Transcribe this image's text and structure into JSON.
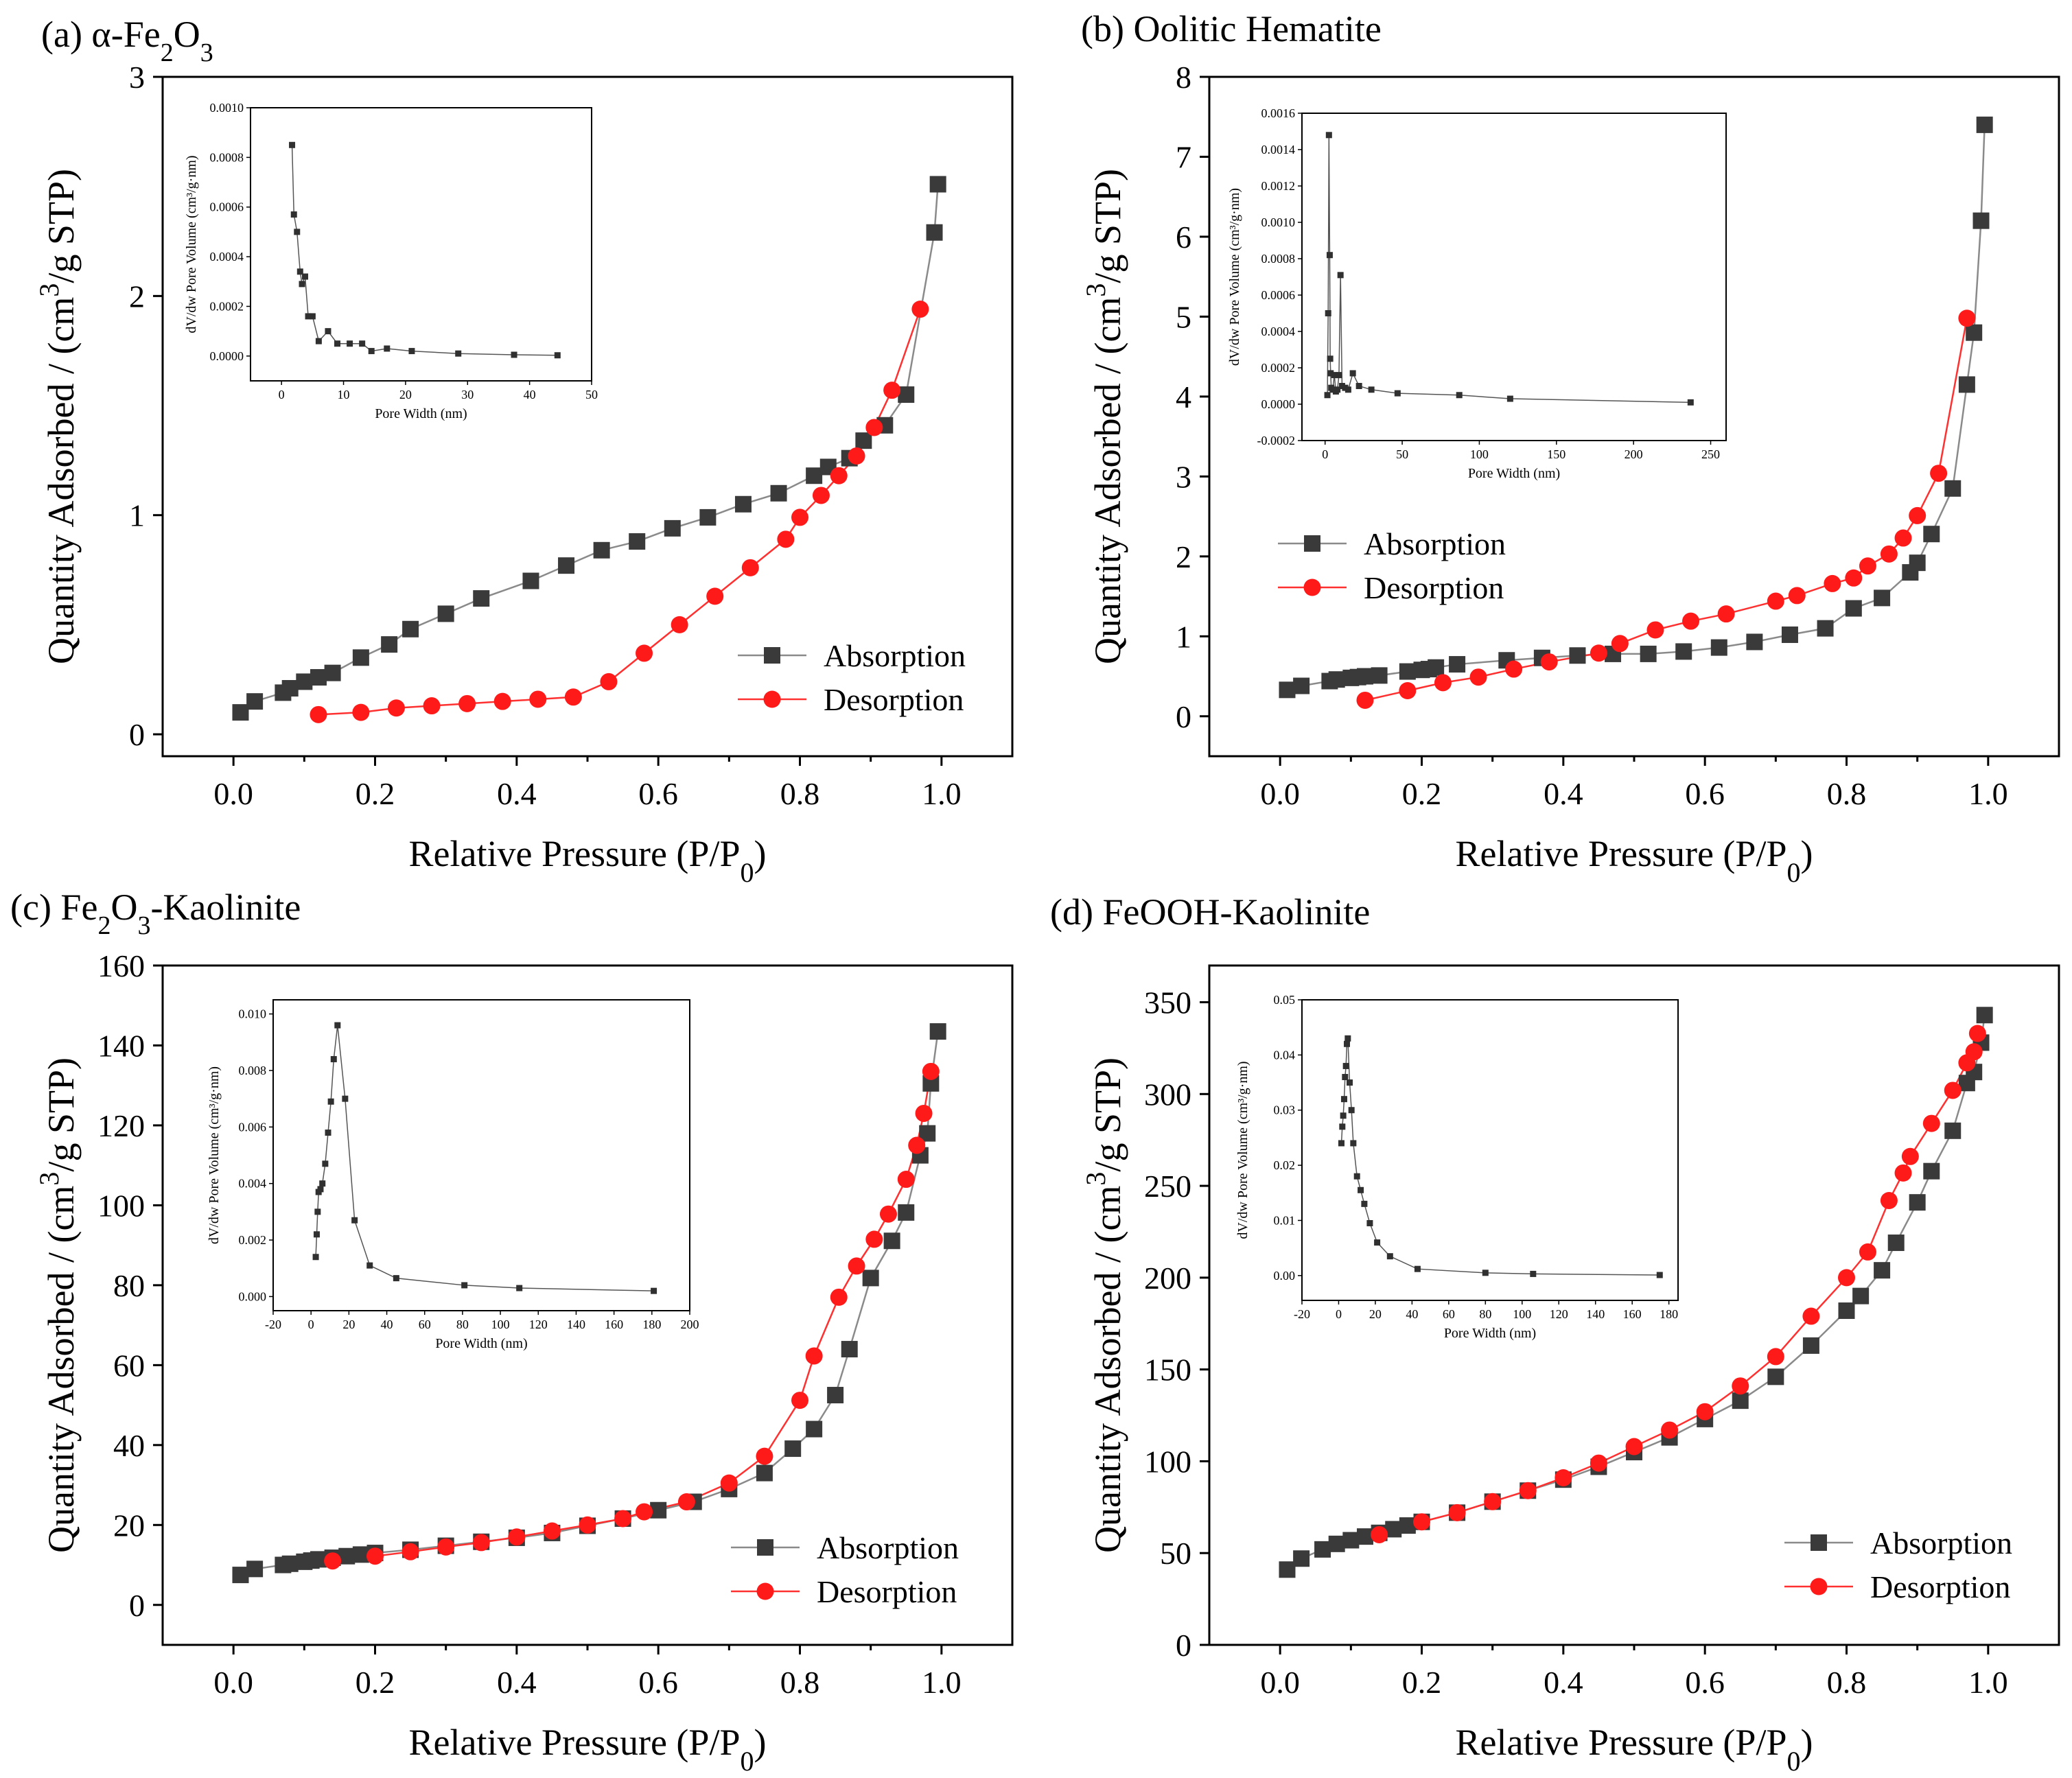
{
  "figure": {
    "legend": {
      "absorption": "Absorption",
      "desorption": "Desorption"
    },
    "colors": {
      "absorption_line": "#8a8a8a",
      "absorption_marker": "#3a3a3a",
      "desorption_line": "#ff3030",
      "desorption_marker": "#ff1a1a",
      "inset_marker": "#303030"
    }
  },
  "chart_data": [
    {
      "id": "a",
      "type": "line",
      "title_prefix": "(a) α-Fe",
      "title_sub1": "2",
      "title_mid": "O",
      "title_sub2": "3",
      "title_suffix": "",
      "xlabel": "Relative Pressure (P/P",
      "xlabel_sub": "0",
      "xlabel_end": ")",
      "ylabel": "Quantity Adsorbed / (cm",
      "ylabel_sup": "3",
      "ylabel_end": "/g STP)",
      "xlim": [
        -0.1,
        1.1
      ],
      "ylim": [
        -0.1,
        3
      ],
      "xticks": [
        0.0,
        0.2,
        0.4,
        0.6,
        0.8,
        1.0
      ],
      "xtick_labels": [
        "0.0",
        "0.2",
        "0.4",
        "0.6",
        "0.8",
        "1.0"
      ],
      "yticks": [
        0,
        1,
        2,
        3
      ],
      "ytick_labels": [
        "0",
        "1",
        "2",
        "3"
      ],
      "legend_position": "bottom-right",
      "series": [
        {
          "name": "Absorption",
          "x": [
            0.01,
            0.03,
            0.07,
            0.08,
            0.1,
            0.12,
            0.14,
            0.18,
            0.22,
            0.25,
            0.3,
            0.35,
            0.42,
            0.47,
            0.52,
            0.57,
            0.62,
            0.67,
            0.72,
            0.77,
            0.82,
            0.84,
            0.87,
            0.89,
            0.92,
            0.95,
            0.99,
            0.995
          ],
          "y": [
            0.1,
            0.15,
            0.19,
            0.21,
            0.24,
            0.26,
            0.28,
            0.35,
            0.41,
            0.48,
            0.55,
            0.62,
            0.7,
            0.77,
            0.84,
            0.88,
            0.94,
            0.99,
            1.05,
            1.1,
            1.18,
            1.22,
            1.26,
            1.34,
            1.41,
            1.55,
            2.29,
            2.51
          ]
        },
        {
          "name": "Desorption",
          "x": [
            0.12,
            0.18,
            0.23,
            0.28,
            0.33,
            0.38,
            0.43,
            0.48,
            0.53,
            0.58,
            0.63,
            0.68,
            0.73,
            0.78,
            0.8,
            0.83,
            0.855,
            0.88,
            0.905,
            0.93,
            0.97
          ],
          "y": [
            0.09,
            0.1,
            0.12,
            0.13,
            0.14,
            0.15,
            0.16,
            0.17,
            0.24,
            0.37,
            0.5,
            0.63,
            0.76,
            0.89,
            0.99,
            1.09,
            1.18,
            1.27,
            1.4,
            1.57,
            1.94
          ]
        }
      ],
      "inset": {
        "xlabel": "Pore Width (nm)",
        "ylabel": "dV/dw Pore Volume (cm³/g·nm)",
        "xlim": [
          -5,
          50
        ],
        "ylim": [
          -0.0001,
          0.001
        ],
        "xticks": [
          0,
          10,
          20,
          30,
          40,
          50
        ],
        "xtick_labels": [
          "0",
          "10",
          "20",
          "30",
          "40",
          "50"
        ],
        "yticks": [
          0.0,
          0.0002,
          0.0004,
          0.0006,
          0.0008,
          0.001
        ],
        "ytick_labels": [
          "0.0000",
          "0.0002",
          "0.0004",
          "0.0006",
          "0.0008",
          "0.0010"
        ],
        "x": [
          1.7,
          2.0,
          2.5,
          3.0,
          3.3,
          3.8,
          4.3,
          5.0,
          6.0,
          7.5,
          9.0,
          11.0,
          13.0,
          14.5,
          17.0,
          21.0,
          28.5,
          37.5,
          44.5
        ],
        "y": [
          0.00085,
          0.00057,
          0.0005,
          0.00034,
          0.00029,
          0.00032,
          0.00016,
          0.00016,
          6e-05,
          0.0001,
          5e-05,
          5e-05,
          5e-05,
          2e-05,
          3e-05,
          2e-05,
          1e-05,
          5e-06,
          3e-06
        ]
      }
    },
    {
      "id": "b",
      "type": "line",
      "title_prefix": "(b) Oolitic Hematite",
      "title_sub1": "",
      "title_mid": "",
      "title_sub2": "",
      "title_suffix": "",
      "xlabel": "Relative Pressure (P/P",
      "xlabel_sub": "0",
      "xlabel_end": ")",
      "ylabel": "Quantity Adsorbed / (cm",
      "ylabel_sup": "3",
      "ylabel_end": "/g STP)",
      "xlim": [
        -0.1,
        1.1
      ],
      "ylim": [
        -0.5,
        8
      ],
      "xticks": [
        0.0,
        0.2,
        0.4,
        0.6,
        0.8,
        1.0
      ],
      "xtick_labels": [
        "0.0",
        "0.2",
        "0.4",
        "0.6",
        "0.8",
        "1.0"
      ],
      "yticks": [
        0,
        1,
        2,
        3,
        4,
        5,
        6,
        7,
        8
      ],
      "ytick_labels": [
        "0",
        "1",
        "2",
        "3",
        "4",
        "5",
        "6",
        "7",
        "8"
      ],
      "legend_position": "middle-left",
      "series": [
        {
          "name": "Absorption",
          "x": [
            0.01,
            0.03,
            0.07,
            0.08,
            0.1,
            0.11,
            0.12,
            0.14,
            0.18,
            0.2,
            0.21,
            0.22,
            0.25,
            0.32,
            0.37,
            0.42,
            0.47,
            0.52,
            0.57,
            0.62,
            0.67,
            0.72,
            0.77,
            0.81,
            0.85,
            0.89,
            0.9,
            0.92,
            0.95,
            0.97,
            0.98,
            0.99,
            0.995
          ],
          "y": [
            0.33,
            0.38,
            0.44,
            0.46,
            0.48,
            0.49,
            0.5,
            0.51,
            0.56,
            0.58,
            0.59,
            0.61,
            0.65,
            0.7,
            0.73,
            0.76,
            0.78,
            0.78,
            0.81,
            0.86,
            0.93,
            1.02,
            1.1,
            1.35,
            1.48,
            1.8,
            1.92,
            2.28,
            2.85,
            4.15,
            4.8,
            6.2,
            7.4
          ]
        },
        {
          "name": "Desorption",
          "x": [
            0.12,
            0.18,
            0.23,
            0.28,
            0.33,
            0.38,
            0.45,
            0.48,
            0.53,
            0.58,
            0.63,
            0.7,
            0.73,
            0.78,
            0.81,
            0.83,
            0.86,
            0.88,
            0.9,
            0.93,
            0.97
          ],
          "y": [
            0.2,
            0.32,
            0.42,
            0.49,
            0.59,
            0.68,
            0.79,
            0.91,
            1.08,
            1.19,
            1.28,
            1.44,
            1.51,
            1.66,
            1.73,
            1.88,
            2.03,
            2.23,
            2.51,
            3.04,
            4.98
          ]
        }
      ],
      "inset": {
        "xlabel": "Pore Width (nm)",
        "ylabel": "dV/dw Pore Volume (cm³/g·nm)",
        "xlim": [
          -15,
          260
        ],
        "ylim": [
          -0.0002,
          0.0016
        ],
        "xticks": [
          0,
          50,
          100,
          150,
          200,
          250
        ],
        "xtick_labels": [
          "0",
          "50",
          "100",
          "150",
          "200",
          "250"
        ],
        "yticks": [
          -0.0002,
          0.0,
          0.0002,
          0.0004,
          0.0006,
          0.0008,
          0.001,
          0.0012,
          0.0014,
          0.0016
        ],
        "ytick_labels": [
          "-0.0002",
          "0.0000",
          "0.0002",
          "0.0004",
          "0.0006",
          "0.0008",
          "0.0010",
          "0.0012",
          "0.0014",
          "0.0016"
        ],
        "x": [
          1.5,
          2.0,
          2.5,
          3.0,
          3.3,
          3.6,
          4.0,
          5.0,
          6.0,
          7.0,
          8.0,
          9.0,
          10.0,
          11.0,
          13.0,
          15.0,
          18.0,
          22.0,
          30.0,
          47.0,
          87.0,
          120.0,
          237.0
        ],
        "y": [
          5e-05,
          0.0005,
          0.00148,
          0.00082,
          0.00025,
          0.00017,
          9e-05,
          8e-05,
          0.00016,
          7e-05,
          8e-05,
          0.00016,
          0.00071,
          0.0001,
          9e-05,
          8e-05,
          0.00017,
          0.0001,
          8e-05,
          6e-05,
          5e-05,
          3e-05,
          1e-05
        ]
      }
    },
    {
      "id": "c",
      "type": "line",
      "title_prefix": "(c) Fe",
      "title_sub1": "2",
      "title_mid": "O",
      "title_sub2": "3",
      "title_suffix": "-Kaolinite",
      "xlabel": "Relative Pressure (P/P",
      "xlabel_sub": "0",
      "xlabel_end": ")",
      "ylabel": "Quantity Adsorbed / (cm",
      "ylabel_sup": "3",
      "ylabel_end": "/g STP)",
      "xlim": [
        -0.1,
        1.1
      ],
      "ylim": [
        -10,
        160
      ],
      "xticks": [
        0.0,
        0.2,
        0.4,
        0.6,
        0.8,
        1.0
      ],
      "xtick_labels": [
        "0.0",
        "0.2",
        "0.4",
        "0.6",
        "0.8",
        "1.0"
      ],
      "yticks": [
        0,
        20,
        40,
        60,
        80,
        100,
        120,
        140,
        160
      ],
      "ytick_labels": [
        "0",
        "20",
        "40",
        "60",
        "80",
        "100",
        "120",
        "140",
        "160"
      ],
      "legend_position": "bottom-right",
      "series": [
        {
          "name": "Absorption",
          "x": [
            0.01,
            0.03,
            0.07,
            0.08,
            0.1,
            0.11,
            0.12,
            0.14,
            0.16,
            0.18,
            0.2,
            0.25,
            0.3,
            0.35,
            0.4,
            0.45,
            0.5,
            0.55,
            0.6,
            0.65,
            0.7,
            0.75,
            0.79,
            0.82,
            0.85,
            0.87,
            0.9,
            0.93,
            0.95,
            0.97,
            0.98,
            0.985,
            0.995
          ],
          "y": [
            7.5,
            9,
            10,
            10.3,
            10.8,
            11.1,
            11.4,
            11.8,
            12.2,
            12.6,
            13,
            13.8,
            14.8,
            15.8,
            16.8,
            18,
            19.8,
            21.6,
            23.7,
            25.8,
            29,
            33,
            39.1,
            44,
            52.5,
            64,
            81.8,
            91.1,
            98.2,
            112.5,
            118,
            130.5,
            143.5
          ]
        },
        {
          "name": "Desorption",
          "x": [
            0.14,
            0.2,
            0.25,
            0.3,
            0.35,
            0.4,
            0.45,
            0.5,
            0.55,
            0.58,
            0.64,
            0.7,
            0.75,
            0.8,
            0.82,
            0.855,
            0.88,
            0.905,
            0.925,
            0.95,
            0.965,
            0.975,
            0.985
          ],
          "y": [
            11,
            12.2,
            13.3,
            14.5,
            15.6,
            17,
            18.5,
            20,
            21.6,
            23.3,
            25.8,
            30.5,
            37.2,
            51.2,
            62.3,
            77,
            84.8,
            91.5,
            97.8,
            106.5,
            115,
            123,
            133.5
          ]
        }
      ],
      "inset": {
        "xlabel": "Pore Width (nm)",
        "ylabel": "dV/dw Pore Volume (cm³/g·nm)",
        "xlim": [
          -20,
          200
        ],
        "ylim": [
          -0.0005,
          0.0105
        ],
        "xticks": [
          -20,
          0,
          20,
          40,
          60,
          80,
          100,
          120,
          140,
          160,
          180,
          200
        ],
        "xtick_labels": [
          "-20",
          "0",
          "20",
          "40",
          "60",
          "80",
          "100",
          "120",
          "140",
          "160",
          "180",
          "200"
        ],
        "yticks": [
          0.0,
          0.002,
          0.004,
          0.006,
          0.008,
          0.01
        ],
        "ytick_labels": [
          "0.000",
          "0.002",
          "0.004",
          "0.006",
          "0.008",
          "0.010"
        ],
        "x": [
          2.5,
          3.0,
          3.5,
          4.0,
          5.0,
          6.0,
          7.5,
          9.0,
          10.5,
          12.0,
          14.0,
          18.0,
          23.0,
          31.0,
          45.0,
          81.0,
          110.0,
          181.0
        ],
        "y": [
          0.0014,
          0.0022,
          0.003,
          0.0037,
          0.0038,
          0.004,
          0.0047,
          0.0058,
          0.0069,
          0.0084,
          0.0096,
          0.007,
          0.0027,
          0.0011,
          0.00065,
          0.0004,
          0.0003,
          0.0002
        ]
      }
    },
    {
      "id": "d",
      "type": "line",
      "title_prefix": "(d) FeOOH-Kaolinite",
      "title_sub1": "",
      "title_mid": "",
      "title_sub2": "",
      "title_suffix": "",
      "xlabel": "Relative Pressure (P/P",
      "xlabel_sub": "0",
      "xlabel_end": ")",
      "ylabel": "Quantity Adsorbed / (cm",
      "ylabel_sup": "3",
      "ylabel_end": "/g STP)",
      "xlim": [
        -0.1,
        1.1
      ],
      "ylim": [
        0,
        370
      ],
      "xticks": [
        0.0,
        0.2,
        0.4,
        0.6,
        0.8,
        1.0
      ],
      "xtick_labels": [
        "0.0",
        "0.2",
        "0.4",
        "0.6",
        "0.8",
        "1.0"
      ],
      "yticks": [
        0,
        50,
        100,
        150,
        200,
        250,
        300,
        350
      ],
      "ytick_labels": [
        "0",
        "50",
        "100",
        "150",
        "200",
        "250",
        "300",
        "350"
      ],
      "legend_position": "bottom-right",
      "series": [
        {
          "name": "Absorption",
          "x": [
            0.01,
            0.03,
            0.06,
            0.08,
            0.1,
            0.12,
            0.14,
            0.16,
            0.18,
            0.2,
            0.25,
            0.3,
            0.35,
            0.4,
            0.45,
            0.5,
            0.55,
            0.6,
            0.65,
            0.7,
            0.75,
            0.8,
            0.82,
            0.85,
            0.87,
            0.9,
            0.92,
            0.95,
            0.97,
            0.98,
            0.99,
            0.995
          ],
          "y": [
            41,
            47,
            52,
            55,
            57,
            59,
            61,
            63,
            65,
            67,
            72,
            78,
            84,
            90,
            97,
            105,
            113,
            123,
            133,
            146,
            163,
            182,
            190,
            204,
            219,
            241,
            258,
            280,
            306,
            312,
            328,
            343
          ]
        },
        {
          "name": "Desorption",
          "x": [
            0.14,
            0.2,
            0.25,
            0.3,
            0.35,
            0.4,
            0.45,
            0.5,
            0.55,
            0.6,
            0.65,
            0.7,
            0.75,
            0.8,
            0.83,
            0.86,
            0.88,
            0.89,
            0.92,
            0.95,
            0.97,
            0.98,
            0.985
          ],
          "y": [
            60,
            67,
            72,
            78,
            84,
            91,
            99,
            108,
            117,
            127,
            141,
            157,
            179,
            200,
            214,
            242,
            257,
            266,
            284,
            302,
            317,
            323,
            333
          ]
        }
      ],
      "inset": {
        "xlabel": "Pore Width (nm)",
        "ylabel": "dV/dw Pore Volume (cm³/g·nm)",
        "xlim": [
          -20,
          185
        ],
        "ylim": [
          -0.0045,
          0.05
        ],
        "xticks": [
          -20,
          0,
          20,
          40,
          60,
          80,
          100,
          120,
          140,
          160,
          180
        ],
        "xtick_labels": [
          "-20",
          "0",
          "20",
          "40",
          "60",
          "80",
          "100",
          "120",
          "140",
          "160",
          "180"
        ],
        "yticks": [
          0.0,
          0.01,
          0.02,
          0.03,
          0.04,
          0.05
        ],
        "ytick_labels": [
          "0.00",
          "0.01",
          "0.02",
          "0.03",
          "0.04",
          "0.05"
        ],
        "x": [
          1.5,
          2.0,
          2.5,
          3.0,
          3.5,
          4.0,
          4.5,
          5.0,
          6.0,
          7.0,
          8.0,
          10.0,
          12.0,
          14.0,
          17.0,
          21.0,
          28.0,
          43.0,
          80.0,
          106.0,
          175.0
        ],
        "y": [
          0.024,
          0.027,
          0.029,
          0.032,
          0.036,
          0.038,
          0.042,
          0.043,
          0.035,
          0.03,
          0.024,
          0.018,
          0.0155,
          0.013,
          0.0095,
          0.006,
          0.0035,
          0.0012,
          0.0005,
          0.0003,
          0.0001
        ]
      }
    }
  ]
}
